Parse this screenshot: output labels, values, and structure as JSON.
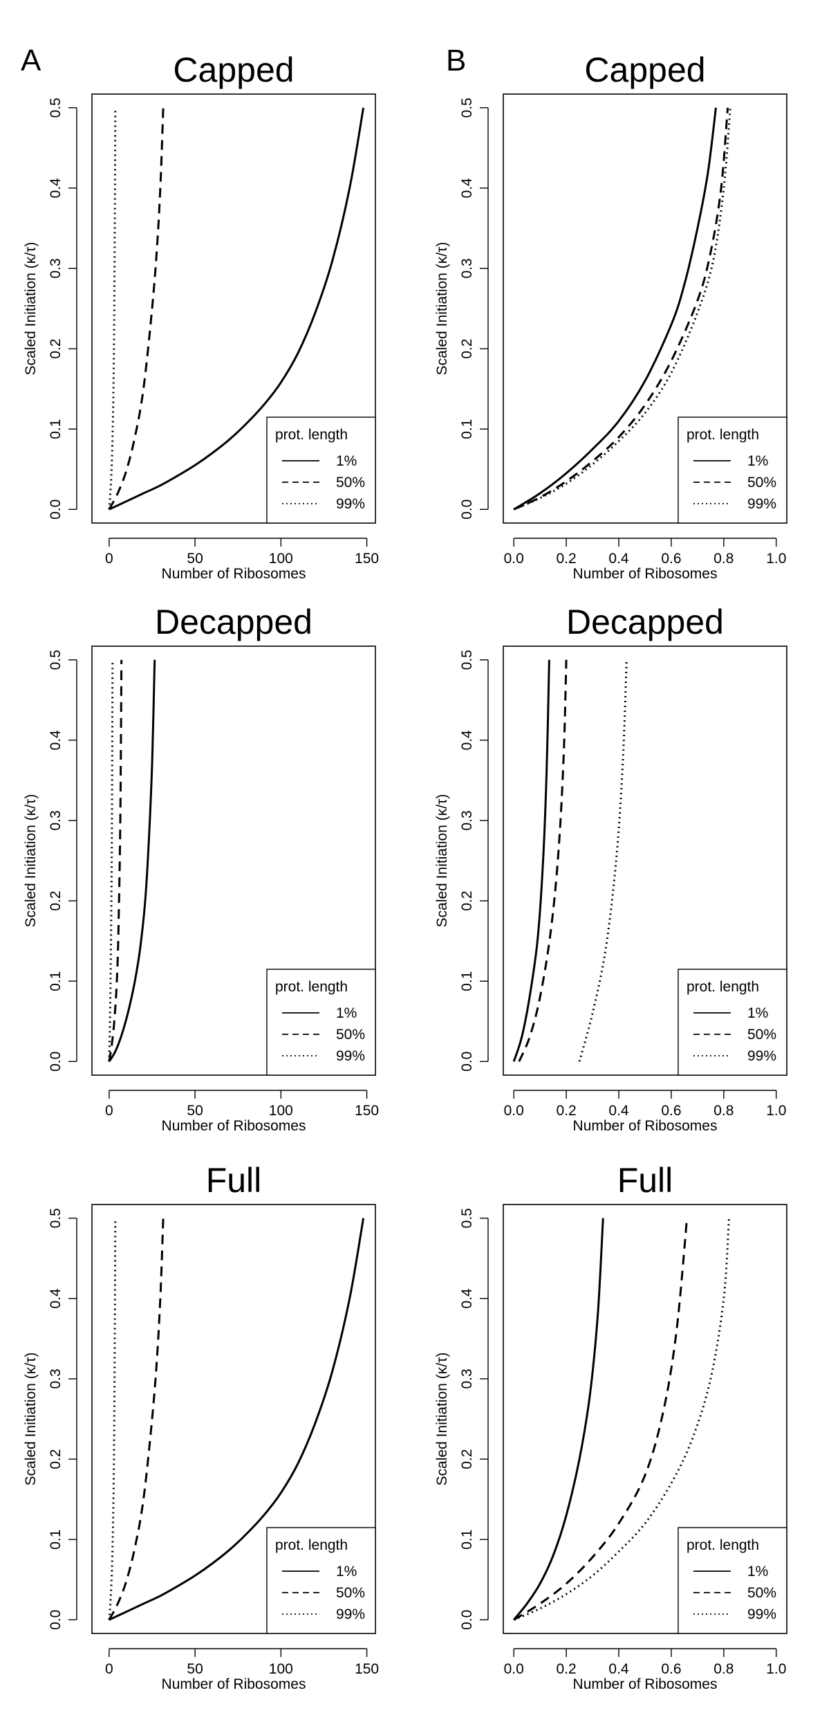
{
  "panel_letters": {
    "left": "A",
    "right": "B"
  },
  "chart_data": [
    {
      "type": "line",
      "column": "A",
      "row": 0,
      "title": "Capped",
      "xlabel": "Number of Ribosomes",
      "ylabel": "Scaled Initiation (κ/τ)",
      "xlim": [
        -10,
        155
      ],
      "ylim": [
        -0.017,
        0.517
      ],
      "xticks": [
        "0",
        "50",
        "100",
        "150"
      ],
      "yticks": [
        "0.0",
        "0.1",
        "0.2",
        "0.3",
        "0.4",
        "0.5"
      ],
      "legend": {
        "title": "prot. length",
        "position": "bottom-right"
      },
      "series": [
        {
          "name": "1%",
          "style": "solid",
          "x": [
            0,
            10,
            20,
            30,
            40,
            50,
            60,
            70,
            80,
            90,
            100,
            110,
            120,
            130,
            140,
            148
          ],
          "y": [
            0,
            0.01,
            0.02,
            0.03,
            0.042,
            0.055,
            0.07,
            0.087,
            0.107,
            0.13,
            0.158,
            0.195,
            0.245,
            0.31,
            0.4,
            0.5
          ]
        },
        {
          "name": "50%",
          "style": "dashed",
          "x": [
            0,
            5,
            10,
            15,
            20,
            25,
            28,
            30,
            31.5
          ],
          "y": [
            0,
            0.02,
            0.048,
            0.09,
            0.15,
            0.25,
            0.33,
            0.41,
            0.5
          ]
        },
        {
          "name": "99%",
          "style": "dotted",
          "x": [
            0,
            1,
            2,
            2.8,
            3.3,
            3.6
          ],
          "y": [
            0,
            0.03,
            0.09,
            0.2,
            0.35,
            0.5
          ]
        }
      ]
    },
    {
      "type": "line",
      "column": "B",
      "row": 0,
      "title": "Capped",
      "xlabel": "Number of Ribosomes",
      "ylabel": "Scaled Initiation (κ/τ)",
      "xlim": [
        -0.04,
        1.04
      ],
      "ylim": [
        -0.017,
        0.517
      ],
      "xticks": [
        "0.0",
        "0.2",
        "0.4",
        "0.6",
        "0.8",
        "1.0"
      ],
      "yticks": [
        "0.0",
        "0.1",
        "0.2",
        "0.3",
        "0.4",
        "0.5"
      ],
      "legend": {
        "title": "prot. length",
        "position": "bottom-right"
      },
      "series": [
        {
          "name": "1%",
          "style": "solid",
          "x": [
            0,
            0.1,
            0.2,
            0.3,
            0.4,
            0.5,
            0.6,
            0.65,
            0.7,
            0.74,
            0.77
          ],
          "y": [
            0,
            0.02,
            0.045,
            0.075,
            0.11,
            0.16,
            0.23,
            0.28,
            0.35,
            0.42,
            0.5
          ]
        },
        {
          "name": "50%",
          "style": "dashed",
          "x": [
            0,
            0.1,
            0.2,
            0.3,
            0.4,
            0.5,
            0.6,
            0.7,
            0.75,
            0.79,
            0.815
          ],
          "y": [
            0,
            0.015,
            0.035,
            0.06,
            0.09,
            0.13,
            0.185,
            0.26,
            0.32,
            0.4,
            0.5
          ]
        },
        {
          "name": "99%",
          "style": "dotted",
          "x": [
            0,
            0.1,
            0.2,
            0.3,
            0.4,
            0.5,
            0.6,
            0.7,
            0.76,
            0.8,
            0.825
          ],
          "y": [
            0,
            0.014,
            0.032,
            0.056,
            0.085,
            0.12,
            0.17,
            0.245,
            0.31,
            0.4,
            0.5
          ]
        }
      ]
    },
    {
      "type": "line",
      "column": "A",
      "row": 1,
      "title": "Decapped",
      "xlabel": "Number of Ribosomes",
      "ylabel": "Scaled Initiation (κ/τ)",
      "xlim": [
        -10,
        155
      ],
      "ylim": [
        -0.017,
        0.517
      ],
      "xticks": [
        "0",
        "50",
        "100",
        "150"
      ],
      "yticks": [
        "0.0",
        "0.1",
        "0.2",
        "0.3",
        "0.4",
        "0.5"
      ],
      "legend": {
        "title": "prot. length",
        "position": "bottom-right"
      },
      "series": [
        {
          "name": "1%",
          "style": "solid",
          "x": [
            0,
            3,
            6,
            9,
            12,
            15,
            18,
            21,
            23,
            25,
            26.5
          ],
          "y": [
            0,
            0.01,
            0.025,
            0.045,
            0.07,
            0.1,
            0.14,
            0.2,
            0.27,
            0.37,
            0.5
          ]
        },
        {
          "name": "50%",
          "style": "dashed",
          "x": [
            0,
            1.5,
            3,
            4.5,
            5.5,
            6.5,
            7.2
          ],
          "y": [
            0,
            0.02,
            0.05,
            0.1,
            0.17,
            0.3,
            0.5
          ]
        },
        {
          "name": "99%",
          "style": "dotted",
          "x": [
            0,
            0.5,
            1,
            1.5,
            1.8,
            2.0
          ],
          "y": [
            0,
            0.05,
            0.13,
            0.25,
            0.37,
            0.5
          ]
        }
      ]
    },
    {
      "type": "line",
      "column": "B",
      "row": 1,
      "title": "Decapped",
      "xlabel": "Number of Ribosomes",
      "ylabel": "Scaled Initiation (κ/τ)",
      "xlim": [
        -0.04,
        1.04
      ],
      "ylim": [
        -0.017,
        0.517
      ],
      "xticks": [
        "0.0",
        "0.2",
        "0.4",
        "0.6",
        "0.8",
        "1.0"
      ],
      "yticks": [
        "0.0",
        "0.1",
        "0.2",
        "0.3",
        "0.4",
        "0.5"
      ],
      "legend": {
        "title": "prot. length",
        "position": "bottom-right"
      },
      "series": [
        {
          "name": "1%",
          "style": "solid",
          "x": [
            0,
            0.03,
            0.06,
            0.09,
            0.11,
            0.125,
            0.135
          ],
          "y": [
            0,
            0.03,
            0.08,
            0.15,
            0.24,
            0.36,
            0.5
          ]
        },
        {
          "name": "50%",
          "style": "dashed",
          "x": [
            0.02,
            0.06,
            0.1,
            0.14,
            0.17,
            0.19,
            0.2
          ],
          "y": [
            0,
            0.03,
            0.08,
            0.16,
            0.26,
            0.38,
            0.5
          ]
        },
        {
          "name": "99%",
          "style": "dotted",
          "x": [
            0.25,
            0.3,
            0.35,
            0.39,
            0.415,
            0.43
          ],
          "y": [
            0,
            0.06,
            0.14,
            0.25,
            0.37,
            0.5
          ]
        }
      ]
    },
    {
      "type": "line",
      "column": "A",
      "row": 2,
      "title": "Full",
      "xlabel": "Number of Ribosomes",
      "ylabel": "Scaled Initiation (κ/τ)",
      "xlim": [
        -10,
        155
      ],
      "ylim": [
        -0.017,
        0.517
      ],
      "xticks": [
        "0",
        "50",
        "100",
        "150"
      ],
      "yticks": [
        "0.0",
        "0.1",
        "0.2",
        "0.3",
        "0.4",
        "0.5"
      ],
      "legend": {
        "title": "prot. length",
        "position": "bottom-right"
      },
      "series": [
        {
          "name": "1%",
          "style": "solid",
          "x": [
            0,
            10,
            20,
            30,
            40,
            50,
            60,
            70,
            80,
            90,
            100,
            110,
            120,
            130,
            140,
            148
          ],
          "y": [
            0,
            0.01,
            0.02,
            0.03,
            0.042,
            0.055,
            0.07,
            0.087,
            0.107,
            0.13,
            0.158,
            0.195,
            0.245,
            0.31,
            0.4,
            0.5
          ]
        },
        {
          "name": "50%",
          "style": "dashed",
          "x": [
            0,
            5,
            10,
            15,
            20,
            25,
            28,
            30,
            31.5
          ],
          "y": [
            0,
            0.02,
            0.048,
            0.09,
            0.15,
            0.25,
            0.33,
            0.41,
            0.5
          ]
        },
        {
          "name": "99%",
          "style": "dotted",
          "x": [
            0,
            1,
            2,
            2.8,
            3.3,
            3.6
          ],
          "y": [
            0,
            0.03,
            0.09,
            0.2,
            0.35,
            0.5
          ]
        }
      ]
    },
    {
      "type": "line",
      "column": "B",
      "row": 2,
      "title": "Full",
      "xlabel": "Number of Ribosomes",
      "ylabel": "Scaled Initiation (κ/τ)",
      "xlim": [
        -0.04,
        1.04
      ],
      "ylim": [
        -0.017,
        0.517
      ],
      "xticks": [
        "0.0",
        "0.2",
        "0.4",
        "0.6",
        "0.8",
        "1.0"
      ],
      "yticks": [
        "0.0",
        "0.1",
        "0.2",
        "0.3",
        "0.4",
        "0.5"
      ],
      "legend": {
        "title": "prot. length",
        "position": "bottom-right"
      },
      "series": [
        {
          "name": "1%",
          "style": "solid",
          "x": [
            0,
            0.05,
            0.1,
            0.15,
            0.2,
            0.25,
            0.29,
            0.32,
            0.34
          ],
          "y": [
            0,
            0.02,
            0.045,
            0.08,
            0.13,
            0.2,
            0.28,
            0.38,
            0.5
          ]
        },
        {
          "name": "50%",
          "style": "dashed",
          "x": [
            0,
            0.1,
            0.2,
            0.3,
            0.4,
            0.5,
            0.57,
            0.62,
            0.66
          ],
          "y": [
            0,
            0.02,
            0.045,
            0.078,
            0.12,
            0.18,
            0.26,
            0.36,
            0.5
          ]
        },
        {
          "name": "99%",
          "style": "dotted",
          "x": [
            0,
            0.1,
            0.2,
            0.3,
            0.4,
            0.5,
            0.6,
            0.68,
            0.75,
            0.8,
            0.82
          ],
          "y": [
            0,
            0.014,
            0.032,
            0.055,
            0.085,
            0.12,
            0.17,
            0.225,
            0.3,
            0.4,
            0.5
          ]
        }
      ]
    }
  ]
}
